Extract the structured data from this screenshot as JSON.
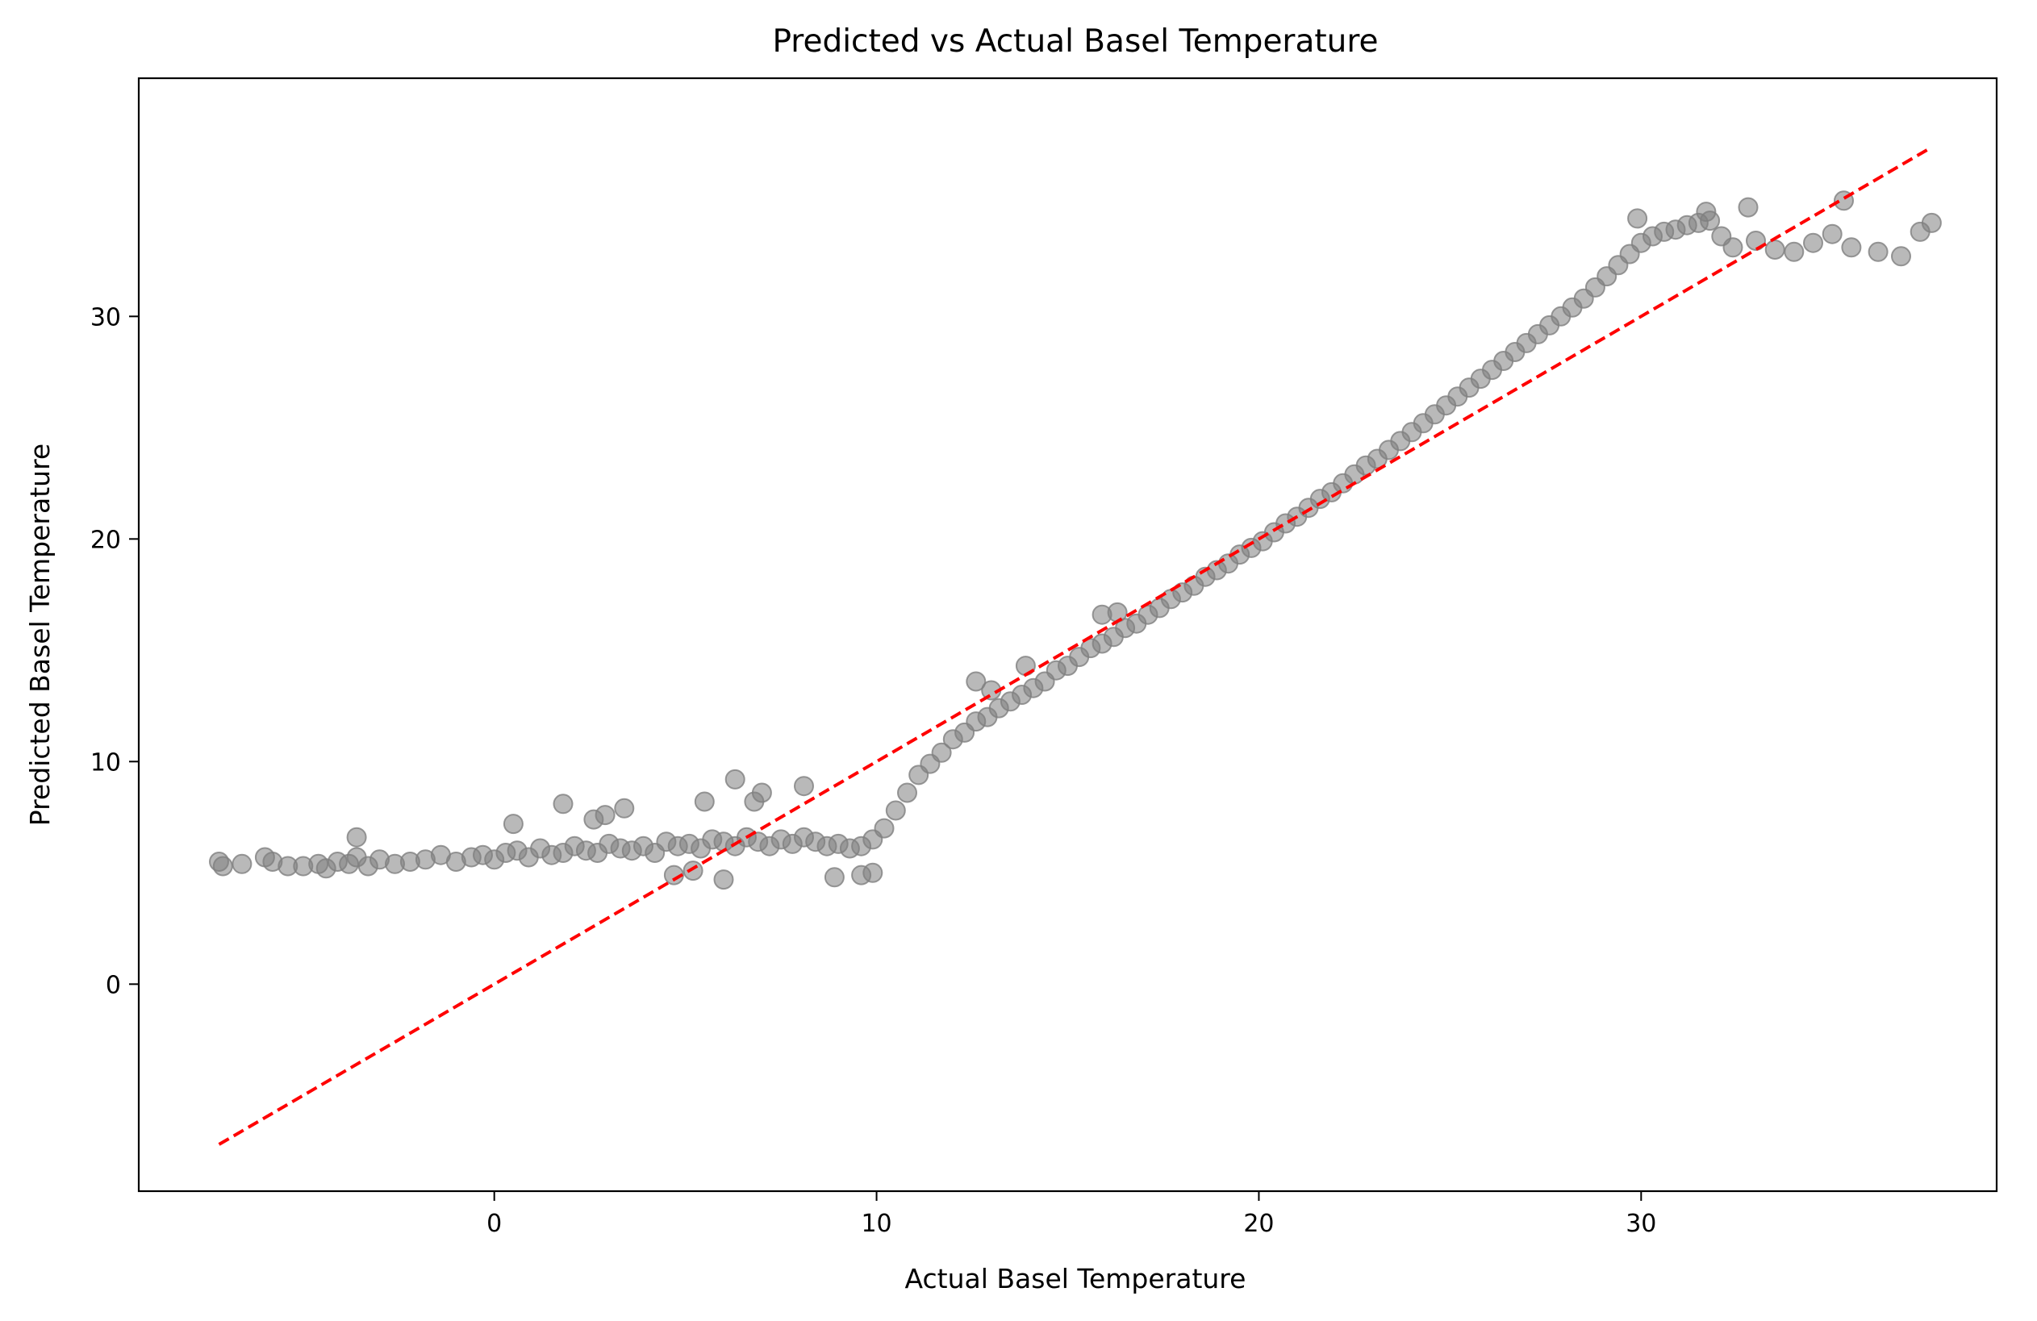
{
  "chart_data": {
    "type": "scatter",
    "title": "Predicted vs Actual Basel Temperature",
    "xlabel": "Actual Basel Temperature",
    "ylabel": "Predicted Basel Temperature",
    "xlim": [
      -9.3,
      39.3
    ],
    "ylim": [
      -9.3,
      40.7
    ],
    "xticks": [
      0,
      10,
      20,
      30
    ],
    "yticks": [
      0,
      10,
      20,
      30
    ],
    "xtick_labels": [
      "0",
      "10",
      "20",
      "30"
    ],
    "ytick_labels": [
      "0",
      "10",
      "20",
      "30"
    ],
    "grid": false,
    "series": [
      {
        "kind": "points",
        "color": "#808080",
        "alpha": 0.55,
        "x": [
          -7.2,
          -7.1,
          -6.6,
          -6.0,
          -5.8,
          -5.4,
          -5.0,
          -4.6,
          -4.4,
          -4.1,
          -3.8,
          -3.6,
          -3.3,
          -3.0,
          -2.6,
          -2.2,
          -1.8,
          -1.4,
          -1.0,
          -0.6,
          -0.3,
          0.0,
          0.3,
          0.6,
          0.9,
          1.2,
          1.5,
          1.8,
          2.1,
          2.4,
          2.7,
          3.0,
          3.3,
          3.6,
          3.9,
          4.2,
          4.5,
          4.8,
          5.1,
          5.4,
          5.7,
          6.0,
          6.3,
          6.6,
          6.9,
          7.2,
          7.5,
          7.8,
          8.1,
          8.4,
          8.7,
          9.0,
          9.3,
          9.6,
          9.9,
          10.2,
          10.5,
          10.8,
          11.1,
          11.4,
          11.7,
          12.0,
          12.3,
          12.6,
          12.9,
          13.2,
          13.5,
          13.8,
          14.1,
          14.4,
          14.7,
          15.0,
          15.3,
          15.6,
          15.9,
          16.2,
          16.5,
          16.8,
          17.1,
          17.4,
          17.7,
          18.0,
          18.3,
          18.6,
          18.9,
          19.2,
          19.5,
          19.8,
          20.1,
          20.4,
          20.7,
          21.0,
          21.3,
          21.6,
          21.9,
          22.2,
          22.5,
          22.8,
          23.1,
          23.4,
          23.7,
          24.0,
          24.3,
          24.6,
          24.9,
          25.2,
          25.5,
          25.8,
          26.1,
          26.4,
          26.7,
          27.0,
          27.3,
          27.6,
          27.9,
          28.2,
          28.5,
          28.8,
          29.1,
          29.4,
          29.7,
          30.0,
          30.3,
          30.6,
          30.9,
          31.2,
          31.5,
          31.8,
          32.1,
          32.4,
          33.0,
          33.5,
          34.0,
          34.5,
          35.0,
          35.5,
          36.2,
          36.8,
          37.3,
          37.6,
          1.8,
          3.4,
          6.3,
          7.0,
          8.1,
          2.6,
          5.5,
          6.8,
          12.6,
          13.0,
          13.9,
          15.9,
          16.3,
          4.7,
          5.2,
          6.0,
          8.9,
          9.6,
          9.9,
          -3.6,
          0.5,
          2.9,
          31.7,
          32.8,
          35.3,
          29.9
        ],
        "y": [
          5.5,
          5.3,
          5.4,
          5.7,
          5.5,
          5.3,
          5.3,
          5.4,
          5.2,
          5.5,
          5.4,
          5.7,
          5.3,
          5.6,
          5.4,
          5.5,
          5.6,
          5.8,
          5.5,
          5.7,
          5.8,
          5.6,
          5.9,
          6.0,
          5.7,
          6.1,
          5.8,
          5.9,
          6.2,
          6.0,
          5.9,
          6.3,
          6.1,
          6.0,
          6.2,
          5.9,
          6.4,
          6.2,
          6.3,
          6.1,
          6.5,
          6.4,
          6.2,
          6.6,
          6.4,
          6.2,
          6.5,
          6.3,
          6.6,
          6.4,
          6.2,
          6.3,
          6.1,
          6.2,
          6.5,
          7.0,
          7.8,
          8.6,
          9.4,
          9.9,
          10.4,
          11.0,
          11.3,
          11.8,
          12.0,
          12.4,
          12.7,
          13.0,
          13.3,
          13.6,
          14.1,
          14.3,
          14.7,
          15.1,
          15.3,
          15.6,
          16.0,
          16.2,
          16.6,
          16.9,
          17.3,
          17.6,
          17.9,
          18.3,
          18.6,
          18.9,
          19.3,
          19.6,
          19.9,
          20.3,
          20.7,
          21.0,
          21.4,
          21.8,
          22.1,
          22.5,
          22.9,
          23.3,
          23.6,
          24.0,
          24.4,
          24.8,
          25.2,
          25.6,
          26.0,
          26.4,
          26.8,
          27.2,
          27.6,
          28.0,
          28.4,
          28.8,
          29.2,
          29.6,
          30.0,
          30.4,
          30.8,
          31.3,
          31.8,
          32.3,
          32.8,
          33.3,
          33.6,
          33.8,
          33.9,
          34.1,
          34.2,
          34.3,
          33.6,
          33.1,
          33.4,
          33.0,
          32.9,
          33.3,
          33.7,
          33.1,
          32.9,
          32.7,
          33.8,
          34.2,
          8.1,
          7.9,
          9.2,
          8.6,
          8.9,
          7.4,
          8.2,
          8.2,
          13.6,
          13.2,
          14.3,
          16.6,
          16.7,
          4.9,
          5.1,
          4.7,
          4.8,
          4.9,
          5.0,
          6.6,
          7.2,
          7.6,
          34.7,
          34.9,
          35.2,
          34.4
        ]
      },
      {
        "kind": "reference-line",
        "color": "#ff0000",
        "style": "dashed",
        "x": [
          -7.2,
          37.6
        ],
        "y": [
          -7.2,
          37.6
        ]
      }
    ]
  }
}
